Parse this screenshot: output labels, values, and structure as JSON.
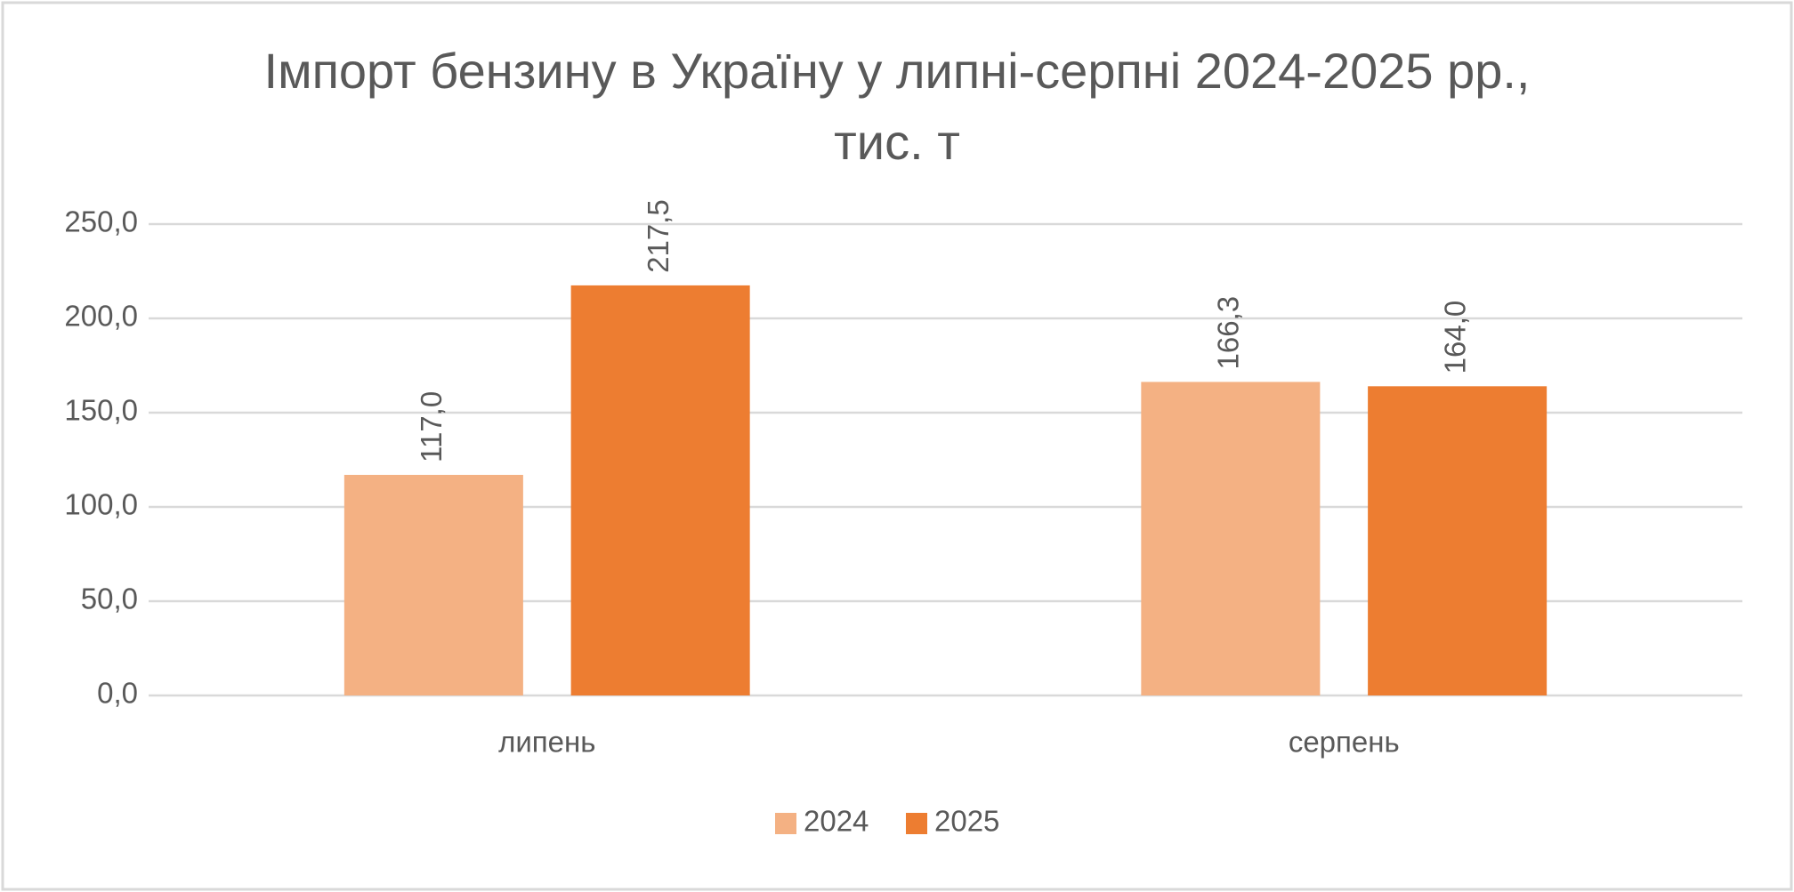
{
  "chart_data": {
    "type": "bar",
    "title": "Імпорт бензину в Україну у липні-серпні 2024-2025 рр.,\nтис. т",
    "categories": [
      "липень",
      "серпень"
    ],
    "series": [
      {
        "name": "2024",
        "color": "#f4b183",
        "values": [
          117.0,
          166.3
        ],
        "value_labels": [
          "117,0",
          "166,3"
        ]
      },
      {
        "name": "2025",
        "color": "#ed7d31",
        "values": [
          217.5,
          164.0
        ],
        "value_labels": [
          "217,5",
          "164,0"
        ]
      }
    ],
    "ylim": [
      0,
      250
    ],
    "yticks": [
      {
        "value": 0,
        "label": "0,0"
      },
      {
        "value": 50,
        "label": "50,0"
      },
      {
        "value": 100,
        "label": "100,0"
      },
      {
        "value": 150,
        "label": "150,0"
      },
      {
        "value": 200,
        "label": "200,0"
      },
      {
        "value": 250,
        "label": "250,0"
      }
    ],
    "grid": true,
    "legend": "bottom"
  }
}
